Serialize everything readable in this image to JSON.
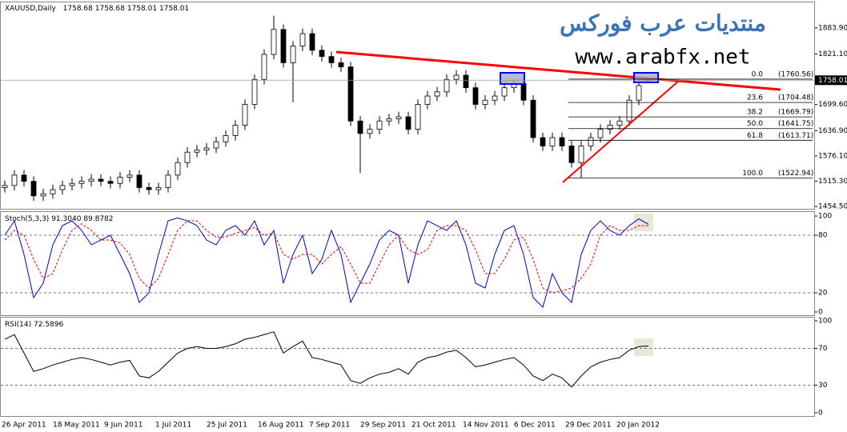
{
  "chart_data": [
    {
      "type": "candlestick",
      "title": "XAUUSD,Daily",
      "open": [
        1500,
        1505,
        1530,
        1515,
        1480,
        1485,
        1495,
        1505,
        1510,
        1515,
        1520,
        1515,
        1510,
        1525,
        1530,
        1500,
        1495,
        1500,
        1530,
        1560,
        1585,
        1590,
        1595,
        1610,
        1625,
        1650,
        1700,
        1760,
        1820,
        1880,
        1800,
        1840,
        1870,
        1830,
        1815,
        1800,
        1790,
        1660,
        1630,
        1640,
        1660,
        1665,
        1670,
        1640,
        1700,
        1720,
        1730,
        1760,
        1770,
        1740,
        1700,
        1710,
        1720,
        1740,
        1750,
        1710,
        1620,
        1600,
        1620,
        1600,
        1560,
        1600,
        1620,
        1640,
        1650,
        1660,
        1710,
        1758.68
      ],
      "high": [
        1517,
        1542,
        1542,
        1527,
        1497,
        1507,
        1517,
        1522,
        1527,
        1532,
        1532,
        1527,
        1537,
        1542,
        1542,
        1512,
        1512,
        1542,
        1572,
        1597,
        1602,
        1607,
        1622,
        1637,
        1662,
        1712,
        1772,
        1832,
        1913,
        1892,
        1852,
        1882,
        1882,
        1842,
        1827,
        1812,
        1802,
        1672,
        1652,
        1672,
        1677,
        1682,
        1682,
        1712,
        1732,
        1742,
        1772,
        1782,
        1782,
        1752,
        1722,
        1732,
        1752,
        1762,
        1762,
        1722,
        1632,
        1632,
        1632,
        1612,
        1612,
        1632,
        1652,
        1662,
        1672,
        1722,
        1757,
        1758.68
      ],
      "low": [
        1488,
        1493,
        1503,
        1468,
        1468,
        1473,
        1483,
        1493,
        1498,
        1503,
        1503,
        1498,
        1498,
        1513,
        1488,
        1483,
        1483,
        1488,
        1518,
        1548,
        1573,
        1578,
        1583,
        1598,
        1613,
        1638,
        1688,
        1748,
        1808,
        1788,
        1705,
        1828,
        1818,
        1803,
        1788,
        1778,
        1648,
        1535,
        1618,
        1628,
        1648,
        1653,
        1628,
        1628,
        1688,
        1708,
        1718,
        1748,
        1728,
        1688,
        1688,
        1698,
        1708,
        1728,
        1698,
        1608,
        1588,
        1588,
        1588,
        1548,
        1523,
        1588,
        1608,
        1628,
        1638,
        1648,
        1698,
        1758.01
      ],
      "close": [
        1505,
        1530,
        1515,
        1480,
        1485,
        1495,
        1505,
        1510,
        1515,
        1520,
        1515,
        1510,
        1525,
        1530,
        1500,
        1495,
        1500,
        1530,
        1560,
        1585,
        1590,
        1595,
        1610,
        1625,
        1650,
        1700,
        1760,
        1820,
        1880,
        1800,
        1840,
        1870,
        1830,
        1815,
        1800,
        1790,
        1660,
        1630,
        1640,
        1660,
        1665,
        1670,
        1640,
        1700,
        1720,
        1730,
        1760,
        1770,
        1740,
        1700,
        1710,
        1720,
        1740,
        1750,
        1710,
        1620,
        1600,
        1620,
        1600,
        1560,
        1600,
        1620,
        1640,
        1650,
        1660,
        1710,
        1745,
        1758.01
      ],
      "ylim": [
        1447,
        1947
      ],
      "yticks": [
        {
          "value": 1883.9,
          "label": "1883.90"
        },
        {
          "value": 1821.1,
          "label": "1821.10"
        },
        {
          "value": 1699.6,
          "label": "1699.60"
        },
        {
          "value": 1636.9,
          "label": "1636.90"
        },
        {
          "value": 1576.1,
          "label": "1576.10"
        },
        {
          "value": 1515.3,
          "label": "1515.30"
        },
        {
          "value": 1454.5,
          "label": "1454.50"
        }
      ],
      "fibonacci": {
        "levels": [
          {
            "value": 0,
            "label": "0.0"
          },
          {
            "value": 23.6,
            "label": "23.6"
          },
          {
            "value": 38.2,
            "label": "38.2"
          },
          {
            "value": 50,
            "label": "50.0"
          },
          {
            "value": 61.8,
            "label": "61.8"
          },
          {
            "value": 100,
            "label": "100.0"
          }
        ],
        "values": [
          1760.56,
          1704.48,
          1669.79,
          1641.75,
          1613.71,
          1522.94
        ],
        "value_labels": [
          "(1760.56)",
          "(1704.48)",
          "(1669.79)",
          "(1641.75)",
          "(1613.71)",
          "(1522.94)"
        ]
      },
      "watermark": {
        "title": "منتديات عرب فوركس",
        "url": "www.arabfx.net"
      }
    },
    {
      "type": "line",
      "title": "Stoch(5,3,3)",
      "last_labels": [
        "91.3040",
        "89.8782"
      ],
      "series": [
        {
          "color": "#0000cc",
          "values": [
            80,
            95,
            60,
            15,
            30,
            70,
            90,
            95,
            85,
            70,
            75,
            80,
            60,
            40,
            10,
            20,
            60,
            95,
            98,
            95,
            90,
            75,
            70,
            85,
            90,
            80,
            95,
            70,
            85,
            30,
            60,
            80,
            40,
            55,
            85,
            60,
            10,
            30,
            50,
            75,
            85,
            80,
            30,
            70,
            95,
            90,
            85,
            95,
            70,
            30,
            25,
            60,
            85,
            90,
            60,
            15,
            5,
            40,
            20,
            10,
            60,
            85,
            95,
            85,
            80,
            90,
            97,
            91.304
          ]
        },
        {
          "color": "#e00000",
          "dashed": true,
          "values": [
            75,
            85,
            80,
            55,
            35,
            40,
            65,
            85,
            92,
            85,
            75,
            75,
            72,
            60,
            35,
            25,
            35,
            60,
            85,
            95,
            95,
            85,
            78,
            78,
            82,
            85,
            88,
            80,
            82,
            60,
            55,
            60,
            60,
            50,
            60,
            68,
            50,
            30,
            30,
            50,
            70,
            80,
            65,
            60,
            65,
            85,
            90,
            90,
            85,
            65,
            40,
            40,
            55,
            75,
            78,
            55,
            25,
            20,
            22,
            25,
            35,
            50,
            80,
            90,
            85,
            85,
            90,
            89.8782
          ]
        }
      ],
      "ylim": [
        -4.2,
        104.2
      ],
      "yticks": [
        100,
        80,
        20,
        0
      ],
      "levels": [
        80,
        20
      ]
    },
    {
      "type": "line",
      "title": "RSI(14)",
      "series": [
        {
          "color": "#000000",
          "values": [
            80,
            85,
            65,
            45,
            48,
            52,
            55,
            58,
            60,
            58,
            55,
            52,
            55,
            57,
            40,
            38,
            45,
            55,
            65,
            70,
            72,
            70,
            70,
            72,
            75,
            80,
            82,
            85,
            88,
            65,
            72,
            78,
            60,
            58,
            55,
            52,
            35,
            32,
            38,
            42,
            44,
            48,
            42,
            55,
            60,
            62,
            66,
            68,
            60,
            50,
            52,
            55,
            58,
            60,
            52,
            40,
            35,
            42,
            38,
            28,
            40,
            50,
            55,
            58,
            60,
            68,
            72,
            72.5896
          ]
        }
      ],
      "ylim": [
        -3.5,
        103.5
      ],
      "yticks": [
        100,
        70,
        30,
        0
      ],
      "levels": [
        70,
        30
      ],
      "date_labels": [
        "26 Apr 2011",
        "18 May 2011",
        "9 Jun 2011",
        "1 Jul 2011",
        "25 Jul 2011",
        "16 Aug 2011",
        "7 Sep 2011",
        "29 Sep 2011",
        "21 Oct 2011",
        "14 Nov 2011",
        "6 Dec 2011",
        "29 Dec 2011",
        "20 Jan 2012"
      ]
    }
  ]
}
